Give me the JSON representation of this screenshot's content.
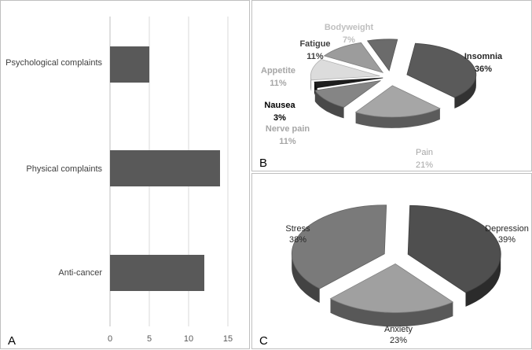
{
  "chart_data": [
    {
      "panel": "A",
      "type": "bar",
      "orientation": "horizontal",
      "categories": [
        "Psychological complaints",
        "Physical complaints",
        "Anti-cancer"
      ],
      "values": [
        5,
        14,
        12
      ],
      "xlim": [
        0,
        15
      ],
      "xticks": [
        "0",
        "5",
        "10",
        "15"
      ],
      "grid": true,
      "bar_color": "#595959"
    },
    {
      "panel": "B",
      "type": "pie",
      "style": "3d-exploded",
      "labels": [
        "Insomnia",
        "Pain",
        "Nerve pain",
        "Nausea",
        "Appetite",
        "Fatigue",
        "Bodyweight"
      ],
      "values": [
        36,
        21,
        11,
        3,
        11,
        11,
        7
      ],
      "value_labels": [
        "36%",
        "21%",
        "11%",
        "3%",
        "11%",
        "11%",
        "7%"
      ],
      "colors": [
        "#5a5a5a",
        "#a6a6a6",
        "#858585",
        "#1e1e1e",
        "#dcdcdc",
        "#9c9c9c",
        "#6b6b6b"
      ],
      "label_colors": [
        "#262626",
        "#a6a6a6",
        "#a6a6a6",
        "#000000",
        "#a6a6a6",
        "#404040",
        "#bfbfbf"
      ]
    },
    {
      "panel": "C",
      "type": "pie",
      "style": "3d-exploded",
      "labels": [
        "Depression",
        "Anxiety",
        "Stress"
      ],
      "values": [
        39,
        23,
        38
      ],
      "value_labels": [
        "39%",
        "23%",
        "38%"
      ],
      "colors": [
        "#4f4f4f",
        "#a0a0a0",
        "#7a7a7a"
      ],
      "label_colors": [
        "#262626",
        "#262626",
        "#262626"
      ]
    }
  ]
}
